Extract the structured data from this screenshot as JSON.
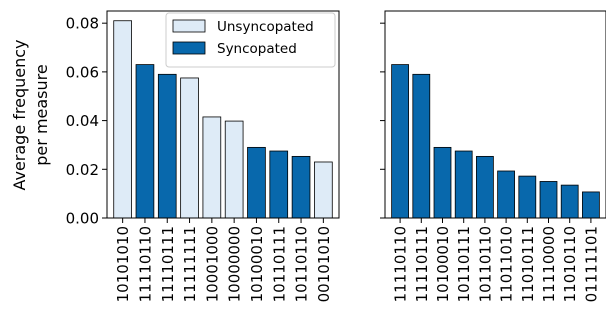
{
  "chart_data": [
    {
      "type": "bar",
      "ylabel": "Average frequency\nper measure",
      "ylim": [
        0,
        0.085
      ],
      "yticks": [
        "0.00",
        "0.02",
        "0.04",
        "0.06",
        "0.08"
      ],
      "categories": [
        "10101010",
        "11110110",
        "11110111",
        "11111111",
        "10001000",
        "10000000",
        "10100010",
        "10110111",
        "10110110",
        "00101010"
      ],
      "values": [
        0.081,
        0.063,
        0.059,
        0.0575,
        0.0415,
        0.0398,
        0.029,
        0.0275,
        0.0253,
        0.023
      ],
      "syncopated": [
        false,
        true,
        true,
        false,
        false,
        false,
        true,
        true,
        true,
        false
      ],
      "legend": {
        "position": "top-right",
        "entries": [
          {
            "label": "Unsyncopated",
            "color": "#deebf7"
          },
          {
            "label": "Syncopated",
            "color": "#0868ac"
          }
        ]
      }
    },
    {
      "type": "bar",
      "ylim": [
        0,
        0.085
      ],
      "shared_y": true,
      "categories": [
        "11110110",
        "11110111",
        "10100010",
        "10110111",
        "10110110",
        "11011010",
        "11010111",
        "11110000",
        "11010110",
        "01111101"
      ],
      "values": [
        0.063,
        0.059,
        0.029,
        0.0275,
        0.0253,
        0.0193,
        0.0172,
        0.015,
        0.0135,
        0.0107
      ],
      "syncopated": [
        true,
        true,
        true,
        true,
        true,
        true,
        true,
        true,
        true,
        true
      ]
    }
  ],
  "colors": {
    "syncopated": "#0868ac",
    "unsyncopated": "#deebf7",
    "edge": "#000000"
  }
}
